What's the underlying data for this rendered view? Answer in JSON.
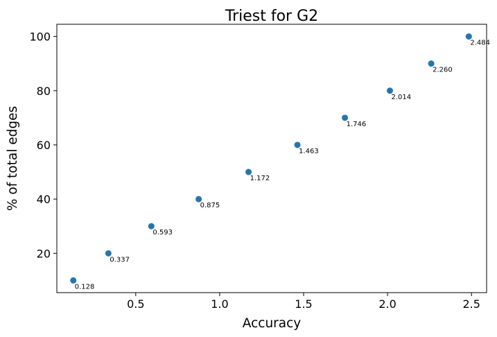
{
  "chart_data": {
    "type": "scatter",
    "title": "Triest for G2",
    "xlabel": "Accuracy",
    "ylabel": "% of total edges",
    "xlim": [
      0.03,
      2.59
    ],
    "ylim": [
      5.5,
      104.5
    ],
    "xticks": [
      0.5,
      1.0,
      1.5,
      2.0,
      2.5
    ],
    "xtick_labels": [
      "0.5",
      "1.0",
      "1.5",
      "2.0",
      "2.5"
    ],
    "yticks": [
      20,
      40,
      60,
      80,
      100
    ],
    "ytick_labels": [
      "20",
      "40",
      "60",
      "80",
      "100"
    ],
    "grid": false,
    "marker_color": "#1f77b4",
    "points": [
      {
        "x": 0.128,
        "y": 10,
        "label": "0.128"
      },
      {
        "x": 0.337,
        "y": 20,
        "label": "0.337"
      },
      {
        "x": 0.593,
        "y": 30,
        "label": "0.593"
      },
      {
        "x": 0.875,
        "y": 40,
        "label": "0.875"
      },
      {
        "x": 1.172,
        "y": 50,
        "label": "1.172"
      },
      {
        "x": 1.463,
        "y": 60,
        "label": "1.463"
      },
      {
        "x": 1.746,
        "y": 70,
        "label": "1.746"
      },
      {
        "x": 2.014,
        "y": 80,
        "label": "2.014"
      },
      {
        "x": 2.26,
        "y": 90,
        "label": "2.260"
      },
      {
        "x": 2.484,
        "y": 100,
        "label": "2.484"
      }
    ]
  }
}
